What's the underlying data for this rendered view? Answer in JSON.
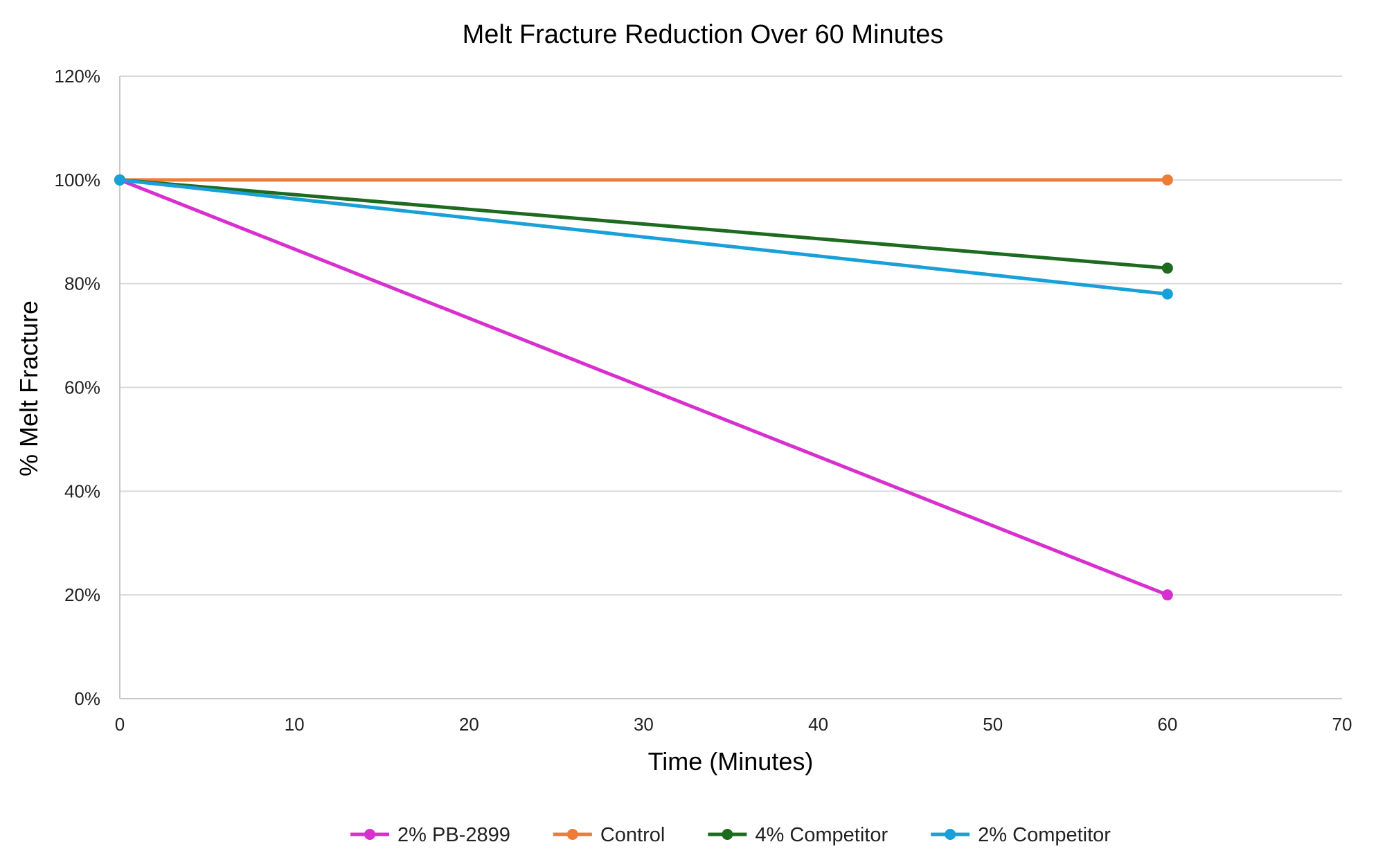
{
  "chart_data": {
    "type": "line",
    "title": "Melt Fracture Reduction Over 60 Minutes",
    "xlabel": "Time (Minutes)",
    "ylabel": "% Melt Fracture",
    "xlim": [
      0,
      70
    ],
    "ylim": [
      0,
      1.2
    ],
    "x_ticks": [
      0,
      10,
      20,
      30,
      40,
      50,
      60,
      70
    ],
    "x_tick_labels": [
      "0",
      "10",
      "20",
      "30",
      "40",
      "50",
      "60",
      "70"
    ],
    "y_ticks": [
      0,
      0.2,
      0.4,
      0.6,
      0.8,
      1.0,
      1.2
    ],
    "y_tick_labels": [
      "0%",
      "20%",
      "40%",
      "60%",
      "80%",
      "100%",
      "120%"
    ],
    "grid": "horizontal",
    "legend_position": "bottom",
    "series": [
      {
        "name": "2% PB-2899",
        "color": "#d82fcf",
        "x": [
          0,
          60
        ],
        "y": [
          1.0,
          0.2
        ]
      },
      {
        "name": "Control",
        "color": "#ee7b36",
        "x": [
          0,
          60
        ],
        "y": [
          1.0,
          1.0
        ]
      },
      {
        "name": "4% Competitor",
        "color": "#1d6b1f",
        "x": [
          0,
          60
        ],
        "y": [
          1.0,
          0.83
        ]
      },
      {
        "name": "2% Competitor",
        "color": "#1aa0d8",
        "x": [
          0,
          60
        ],
        "y": [
          1.0,
          0.78
        ]
      }
    ]
  }
}
